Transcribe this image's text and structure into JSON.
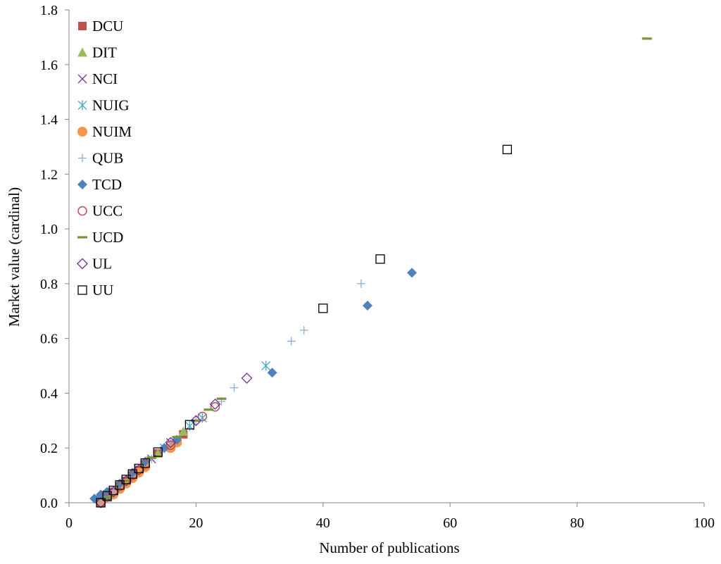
{
  "chart_data": {
    "type": "scatter",
    "title": "",
    "xlabel": "Number of publications",
    "ylabel": "Market value (cardinal)",
    "xlim": [
      0,
      100
    ],
    "ylim": [
      0,
      1.8
    ],
    "x_ticks": [
      "0",
      "20",
      "40",
      "60",
      "80",
      "100"
    ],
    "y_ticks": [
      "0.0",
      "0.2",
      "0.4",
      "0.6",
      "0.8",
      "1.0",
      "1.2",
      "1.4",
      "1.6",
      "1.8"
    ],
    "grid": false,
    "legend_position": "top-left",
    "series": [
      {
        "name": "DCU",
        "marker": "square",
        "color": "#c0504d",
        "points": [
          [
            5,
            0.0
          ],
          [
            6,
            0.02
          ],
          [
            7,
            0.04
          ],
          [
            8,
            0.06
          ],
          [
            9,
            0.08
          ],
          [
            10,
            0.1
          ],
          [
            11,
            0.12
          ],
          [
            14,
            0.18
          ],
          [
            18,
            0.25
          ]
        ]
      },
      {
        "name": "DIT",
        "marker": "triangle",
        "color": "#9bbb59",
        "points": [
          [
            5,
            0.0
          ],
          [
            6,
            0.02
          ],
          [
            8,
            0.06
          ],
          [
            10,
            0.1
          ],
          [
            12,
            0.14
          ],
          [
            14,
            0.18
          ],
          [
            18,
            0.26
          ]
        ]
      },
      {
        "name": "NCI",
        "marker": "x",
        "color": "#7f3f98",
        "points": [
          [
            5,
            0.0
          ],
          [
            6,
            0.02
          ],
          [
            7,
            0.04
          ],
          [
            9,
            0.08
          ],
          [
            11,
            0.12
          ],
          [
            13,
            0.16
          ],
          [
            16,
            0.22
          ]
        ]
      },
      {
        "name": "NUIG",
        "marker": "asterisk",
        "color": "#4bacc6",
        "points": [
          [
            5,
            0.01
          ],
          [
            6,
            0.03
          ],
          [
            8,
            0.06
          ],
          [
            10,
            0.1
          ],
          [
            12,
            0.14
          ],
          [
            15,
            0.2
          ],
          [
            19,
            0.28
          ],
          [
            21,
            0.31
          ],
          [
            31,
            0.5
          ]
        ]
      },
      {
        "name": "NUIM",
        "marker": "circle",
        "color": "#f79646",
        "points": [
          [
            5,
            0.0
          ],
          [
            7,
            0.03
          ],
          [
            8,
            0.05
          ],
          [
            9,
            0.07
          ],
          [
            10,
            0.09
          ],
          [
            11,
            0.11
          ],
          [
            12,
            0.13
          ],
          [
            16,
            0.2
          ],
          [
            17,
            0.22
          ]
        ]
      },
      {
        "name": "QUB",
        "marker": "plus",
        "color": "#8eaadb",
        "points": [
          [
            5,
            0.0
          ],
          [
            7,
            0.04
          ],
          [
            10,
            0.1
          ],
          [
            13,
            0.16
          ],
          [
            16,
            0.22
          ],
          [
            20,
            0.3
          ],
          [
            24,
            0.37
          ],
          [
            26,
            0.42
          ],
          [
            35,
            0.59
          ],
          [
            37,
            0.63
          ],
          [
            46,
            0.8
          ]
        ]
      },
      {
        "name": "TCD",
        "marker": "diamond",
        "color": "#4f81bd",
        "points": [
          [
            4,
            0.015
          ],
          [
            5,
            0.03
          ],
          [
            6,
            0.04
          ],
          [
            8,
            0.07
          ],
          [
            10,
            0.11
          ],
          [
            12,
            0.15
          ],
          [
            15,
            0.2
          ],
          [
            17,
            0.23
          ],
          [
            32,
            0.475
          ],
          [
            47,
            0.72
          ],
          [
            54,
            0.84
          ]
        ]
      },
      {
        "name": "UCC",
        "marker": "circle-open",
        "color": "#c0504d",
        "points": [
          [
            5,
            0.0
          ],
          [
            6,
            0.02
          ],
          [
            8,
            0.06
          ],
          [
            10,
            0.1
          ],
          [
            12,
            0.14
          ],
          [
            16,
            0.21
          ],
          [
            21,
            0.315
          ],
          [
            23,
            0.35
          ]
        ]
      },
      {
        "name": "UCD",
        "marker": "dash",
        "color": "#77933c",
        "points": [
          [
            6,
            0.02
          ],
          [
            9,
            0.08
          ],
          [
            13,
            0.165
          ],
          [
            17,
            0.24
          ],
          [
            20,
            0.3
          ],
          [
            22,
            0.34
          ],
          [
            24,
            0.38
          ],
          [
            91,
            1.695
          ]
        ]
      },
      {
        "name": "UL",
        "marker": "diamond-open",
        "color": "#7030a0",
        "points": [
          [
            5,
            0.0
          ],
          [
            7,
            0.04
          ],
          [
            9,
            0.08
          ],
          [
            11,
            0.12
          ],
          [
            16,
            0.22
          ],
          [
            20,
            0.3
          ],
          [
            23,
            0.36
          ],
          [
            28,
            0.455
          ]
        ]
      },
      {
        "name": "UU",
        "marker": "square-open",
        "color": "#000000",
        "points": [
          [
            5,
            0.0
          ],
          [
            6,
            0.025
          ],
          [
            7,
            0.045
          ],
          [
            8,
            0.065
          ],
          [
            9,
            0.085
          ],
          [
            10,
            0.105
          ],
          [
            11,
            0.125
          ],
          [
            12,
            0.145
          ],
          [
            14,
            0.185
          ],
          [
            19,
            0.285
          ],
          [
            40,
            0.71
          ],
          [
            49,
            0.89
          ],
          [
            69,
            1.29
          ]
        ]
      }
    ]
  }
}
